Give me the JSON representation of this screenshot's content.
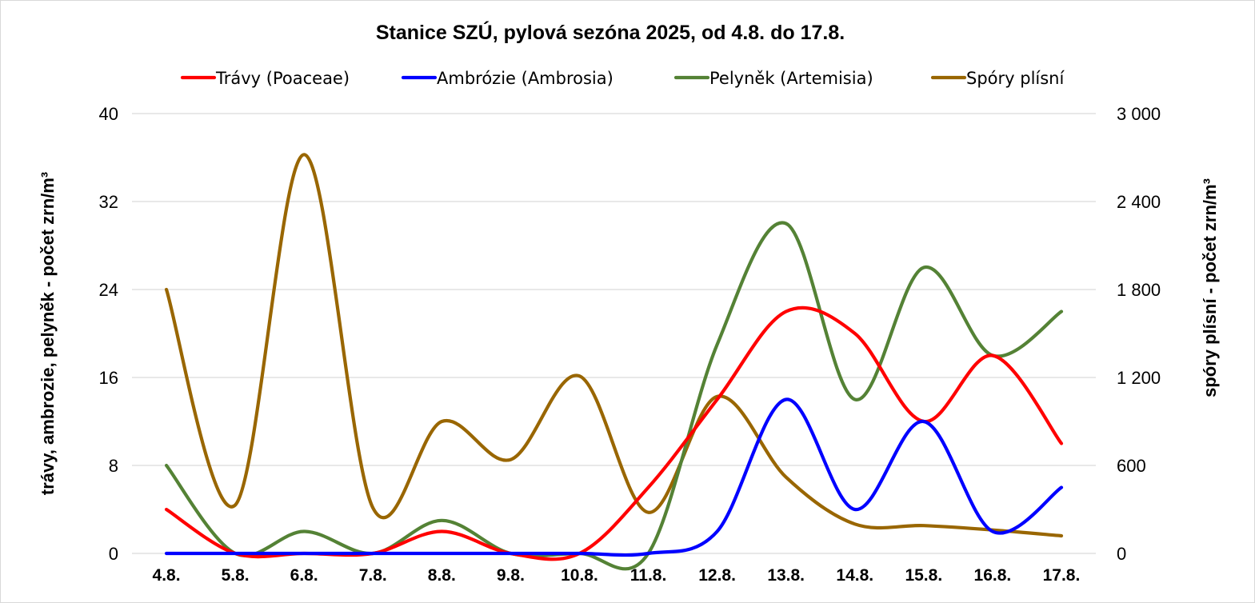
{
  "chart_data": {
    "type": "line",
    "title": "Stanice SZÚ, pylová sezóna 2025, od 4.8. do 17.8.",
    "categories": [
      "4.8.",
      "5.8.",
      "6.8.",
      "7.8.",
      "8.8.",
      "9.8.",
      "10.8.",
      "11.8.",
      "12.8.",
      "13.8.",
      "14.8.",
      "15.8.",
      "16.8.",
      "17.8."
    ],
    "y_left": {
      "label": "trávy, ambrozie, pelyněk - počet zrn/m³",
      "range": [
        0,
        40
      ],
      "ticks": [
        "0",
        "8",
        "16",
        "24",
        "32",
        "40"
      ]
    },
    "y_right": {
      "label": "spóry plísní - počet zrn/m³",
      "range": [
        0,
        3000
      ],
      "ticks": [
        "0",
        "600",
        "1 200",
        "1 800",
        "2 400",
        "3 000"
      ]
    },
    "grid": true,
    "legend_position": "top",
    "series": [
      {
        "name": "Trávy (Poaceae)",
        "axis": "left",
        "color": "#ff0000",
        "values": [
          4,
          0,
          0,
          0,
          2,
          0,
          0,
          6,
          14,
          22,
          20,
          12,
          18,
          10
        ]
      },
      {
        "name": "Ambrózie (Ambrosia)",
        "axis": "left",
        "color": "#0000ff",
        "values": [
          0,
          0,
          0,
          0,
          0,
          0,
          0,
          0,
          2,
          14,
          4,
          12,
          2,
          6
        ]
      },
      {
        "name": "Pelyněk (Artemisia)",
        "axis": "left",
        "color": "#548235",
        "values": [
          8,
          0,
          2,
          0,
          3,
          0,
          0,
          0,
          19,
          30,
          14,
          26,
          18,
          22
        ]
      },
      {
        "name": "Spóry plísní",
        "axis": "right",
        "color": "#996600",
        "values": [
          1800,
          330,
          2720,
          310,
          900,
          640,
          1210,
          280,
          1070,
          520,
          200,
          190,
          160,
          120
        ]
      }
    ]
  }
}
